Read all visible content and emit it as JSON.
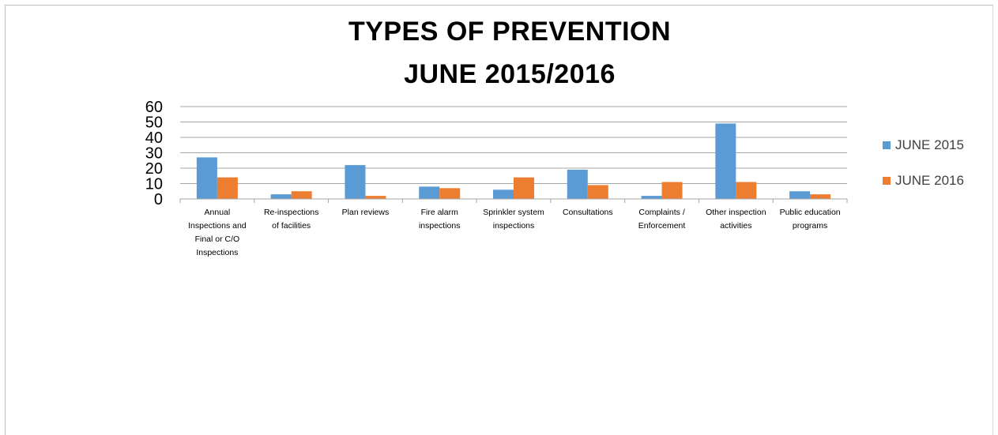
{
  "chart_data": {
    "type": "bar",
    "title_lines": [
      "TYPES OF PREVENTION",
      "JUNE 2015/2016"
    ],
    "categories": [
      [
        "Annual",
        "Inspections and",
        "Final or C/O",
        "Inspections"
      ],
      [
        "Re-inspections",
        "of facilities"
      ],
      [
        "Plan reviews"
      ],
      [
        "Fire alarm",
        "inspections"
      ],
      [
        "Sprinkler system",
        "inspections"
      ],
      [
        "Consultations"
      ],
      [
        "Complaints /",
        "Enforcement"
      ],
      [
        "Other inspection",
        "activities"
      ],
      [
        "Public education",
        "programs"
      ]
    ],
    "series": [
      {
        "name": "JUNE 2015",
        "color": "#5B9BD5",
        "values": [
          27,
          3,
          22,
          8,
          6,
          19,
          2,
          49,
          5
        ]
      },
      {
        "name": "JUNE 2016",
        "color": "#ED7D31",
        "values": [
          14,
          5,
          2,
          7,
          14,
          9,
          11,
          11,
          3
        ]
      }
    ],
    "ylim": [
      0,
      60
    ],
    "yticks": [
      0,
      10,
      20,
      30,
      40,
      50,
      60
    ],
    "grid": true,
    "legend_position": "right"
  }
}
